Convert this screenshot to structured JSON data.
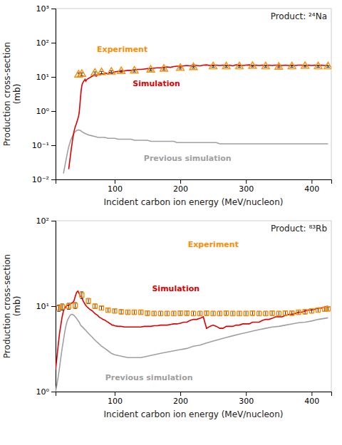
{
  "chart_data": [
    {
      "type": "line",
      "title": "Product: ²⁴Na",
      "x_label": "Incident carbon ion energy (MeV/nucleon)",
      "y_label": "Production cross-section\n(mb)",
      "log": "y",
      "xlim": [
        10,
        430
      ],
      "xticks": [
        100,
        200,
        300,
        400
      ],
      "ylim": [
        0.01,
        1000
      ],
      "yticks": [
        {
          "value": 0.01,
          "label": "10⁻²"
        },
        {
          "value": 0.1,
          "label": "10⁻¹"
        },
        {
          "value": 1,
          "label": "10⁰"
        },
        {
          "value": 10,
          "label": "10¹"
        },
        {
          "value": 100,
          "label": "10²"
        },
        {
          "value": 1000,
          "label": "10³"
        }
      ],
      "series": [
        {
          "name": "Previous simulation",
          "type": "line",
          "color": "#A0A0A0",
          "x": [
            22,
            25,
            28,
            30,
            33,
            36,
            39,
            42,
            45,
            48,
            50,
            55,
            60,
            65,
            70,
            75,
            80,
            85,
            90,
            95,
            100,
            105,
            110,
            115,
            120,
            125,
            130,
            135,
            140,
            145,
            150,
            155,
            160,
            165,
            170,
            175,
            180,
            185,
            190,
            195,
            200,
            205,
            210,
            215,
            220,
            225,
            230,
            235,
            240,
            245,
            250,
            255,
            260,
            265,
            270,
            275,
            280,
            285,
            290,
            295,
            300,
            305,
            310,
            315,
            320,
            325,
            330,
            335,
            340,
            345,
            350,
            355,
            360,
            365,
            370,
            375,
            380,
            385,
            390,
            395,
            400,
            405,
            410,
            415,
            420,
            425
          ],
          "values": [
            0.015,
            0.03,
            0.06,
            0.09,
            0.14,
            0.19,
            0.24,
            0.27,
            0.28,
            0.27,
            0.25,
            0.22,
            0.2,
            0.19,
            0.18,
            0.17,
            0.17,
            0.17,
            0.16,
            0.16,
            0.16,
            0.15,
            0.15,
            0.15,
            0.15,
            0.15,
            0.14,
            0.14,
            0.14,
            0.14,
            0.14,
            0.13,
            0.13,
            0.13,
            0.13,
            0.13,
            0.13,
            0.13,
            0.13,
            0.12,
            0.12,
            0.12,
            0.12,
            0.12,
            0.12,
            0.12,
            0.12,
            0.12,
            0.12,
            0.12,
            0.12,
            0.12,
            0.11,
            0.11,
            0.11,
            0.11,
            0.11,
            0.11,
            0.11,
            0.11,
            0.11,
            0.11,
            0.11,
            0.11,
            0.11,
            0.11,
            0.11,
            0.11,
            0.11,
            0.11,
            0.11,
            0.11,
            0.11,
            0.11,
            0.11,
            0.11,
            0.11,
            0.11,
            0.11,
            0.11,
            0.11,
            0.11,
            0.11,
            0.11,
            0.11,
            0.11
          ]
        },
        {
          "name": "Simulation",
          "type": "line",
          "color": "#DD0000",
          "x": [
            30,
            32,
            34,
            36,
            38,
            40,
            42,
            44,
            45,
            46,
            47,
            48,
            49,
            50,
            51,
            52,
            53,
            54,
            55,
            56,
            57,
            58,
            60,
            62,
            64,
            66,
            68,
            70,
            72,
            74,
            76,
            78,
            80,
            82,
            84,
            86,
            88,
            90,
            92,
            94,
            96,
            98,
            100,
            105,
            110,
            115,
            120,
            125,
            130,
            135,
            140,
            145,
            150,
            155,
            160,
            165,
            170,
            175,
            180,
            185,
            190,
            195,
            200,
            205,
            210,
            215,
            220,
            225,
            230,
            235,
            240,
            245,
            250,
            255,
            260,
            265,
            270,
            275,
            280,
            285,
            290,
            295,
            300,
            305,
            310,
            315,
            320,
            325,
            330,
            335,
            340,
            345,
            350,
            355,
            360,
            365,
            370,
            375,
            380,
            385,
            390,
            395,
            400,
            405,
            410,
            415,
            420,
            425
          ],
          "values": [
            0.02,
            0.04,
            0.08,
            0.15,
            0.25,
            0.35,
            0.45,
            0.6,
            0.7,
            0.9,
            1.5,
            2.5,
            4.0,
            5.5,
            6.5,
            7.0,
            7.5,
            8.0,
            8.5,
            7.5,
            8.0,
            8.5,
            9.0,
            9.5,
            10.0,
            10.5,
            11.0,
            11.0,
            10.5,
            11.5,
            12.0,
            11.5,
            12.5,
            12.0,
            12.0,
            13.0,
            12.5,
            12.0,
            13.5,
            13.0,
            12.5,
            13.5,
            14.0,
            14.5,
            14.5,
            15.0,
            15.5,
            15.5,
            16.0,
            16.5,
            16.5,
            17.0,
            17.5,
            17.5,
            18.0,
            18.5,
            18.5,
            19.0,
            19.5,
            19.0,
            20.0,
            20.5,
            20.5,
            21.0,
            21.5,
            21.0,
            22.0,
            21.5,
            21.0,
            22.0,
            22.5,
            21.5,
            22.0,
            22.0,
            21.5,
            22.0,
            21.5,
            22.0,
            21.0,
            22.5,
            22.0,
            21.5,
            22.0,
            22.5,
            21.5,
            22.0,
            21.5,
            22.0,
            21.5,
            22.0,
            21.5,
            22.0,
            22.0,
            21.5,
            22.0,
            21.5,
            22.0,
            21.5,
            22.0,
            22.0,
            21.5,
            22.0,
            21.5,
            22.0,
            21.5,
            22.0,
            21.5,
            22.0
          ]
        },
        {
          "name": "Experiment",
          "type": "scatter",
          "marker": "triangle",
          "color": "#FF8C00",
          "x": [
            45,
            50,
            70,
            80,
            95,
            110,
            130,
            155,
            175,
            200,
            220,
            250,
            270,
            290,
            310,
            330,
            350,
            370,
            390,
            410,
            425
          ],
          "values": [
            11.5,
            12,
            13,
            13.5,
            14,
            14.5,
            15,
            16,
            17,
            18,
            19,
            20,
            20,
            20,
            20.5,
            20,
            19.5,
            20,
            20.5,
            20,
            20
          ],
          "error_minus": [
            1.5,
            1.2,
            1.0,
            1.0,
            1.0,
            1.0,
            1.0,
            1.0,
            1.0,
            1.0,
            1.0,
            1.0,
            1.0,
            1.0,
            1.0,
            1.0,
            1.0,
            1.0,
            1.0,
            1.0,
            1.0
          ],
          "error_plus": [
            1.5,
            1.2,
            1.0,
            1.0,
            1.0,
            1.0,
            1.0,
            1.0,
            1.0,
            1.0,
            1.0,
            1.0,
            1.0,
            1.0,
            1.0,
            1.0,
            1.0,
            1.0,
            1.0,
            1.0,
            1.0
          ]
        }
      ]
    },
    {
      "type": "line",
      "title": "Product: ⁸³Rb",
      "x_label": "Incident carbon ion energy (MeV/nucleon)",
      "y_label": "Production cross-section\n(mb)",
      "log": "y",
      "xlim": [
        10,
        430
      ],
      "xticks": [
        100,
        200,
        300,
        400
      ],
      "ylim": [
        1.0,
        100
      ],
      "yticks": [
        {
          "value": 1,
          "label": "10⁰"
        },
        {
          "value": 10,
          "label": "10¹"
        },
        {
          "value": 100,
          "label": "10²"
        }
      ],
      "series": [
        {
          "name": "Previous simulation",
          "type": "line",
          "color": "#A0A0A0",
          "x": [
            10,
            12,
            14,
            16,
            18,
            20,
            22,
            24,
            26,
            28,
            30,
            32,
            34,
            36,
            38,
            40,
            42,
            44,
            46,
            48,
            50,
            55,
            60,
            65,
            70,
            75,
            80,
            85,
            90,
            95,
            100,
            110,
            120,
            130,
            140,
            150,
            160,
            170,
            180,
            190,
            200,
            210,
            220,
            230,
            240,
            250,
            260,
            270,
            280,
            290,
            300,
            310,
            320,
            330,
            340,
            350,
            360,
            370,
            380,
            390,
            400,
            410,
            420,
            425
          ],
          "values": [
            1.0,
            1.2,
            1.5,
            1.9,
            2.5,
            3.2,
            4.0,
            5.0,
            6.0,
            6.8,
            7.3,
            7.8,
            8.0,
            8.0,
            7.8,
            7.5,
            7.2,
            6.8,
            6.5,
            6.0,
            5.8,
            5.3,
            4.8,
            4.4,
            4.0,
            3.7,
            3.4,
            3.2,
            3.0,
            2.8,
            2.7,
            2.6,
            2.5,
            2.5,
            2.5,
            2.6,
            2.7,
            2.8,
            2.9,
            3.0,
            3.1,
            3.2,
            3.4,
            3.5,
            3.7,
            3.9,
            4.1,
            4.3,
            4.5,
            4.7,
            4.9,
            5.1,
            5.3,
            5.5,
            5.7,
            5.8,
            6.0,
            6.2,
            6.4,
            6.5,
            6.7,
            7.0,
            7.2,
            7.3
          ]
        },
        {
          "name": "Simulation",
          "type": "line",
          "color": "#DD0000",
          "x": [
            10,
            12,
            14,
            16,
            18,
            20,
            22,
            24,
            26,
            28,
            30,
            32,
            34,
            36,
            38,
            40,
            42,
            44,
            46,
            48,
            50,
            52,
            54,
            56,
            58,
            60,
            62,
            64,
            66,
            68,
            70,
            72,
            74,
            76,
            78,
            80,
            82,
            84,
            86,
            88,
            90,
            92,
            94,
            96,
            98,
            100,
            105,
            110,
            115,
            120,
            125,
            130,
            135,
            140,
            145,
            150,
            155,
            160,
            165,
            170,
            175,
            180,
            185,
            190,
            195,
            200,
            205,
            210,
            215,
            220,
            225,
            230,
            235,
            240,
            245,
            250,
            255,
            260,
            265,
            270,
            275,
            280,
            285,
            290,
            295,
            300,
            305,
            310,
            315,
            320,
            325,
            330,
            335,
            340,
            345,
            350,
            355,
            360,
            365,
            370,
            375,
            380,
            385,
            390,
            395,
            400,
            405,
            410,
            415,
            420,
            425
          ],
          "values": [
            1.8,
            2.5,
            3.5,
            4.8,
            6.0,
            7.5,
            8.8,
            9.5,
            10.0,
            10.2,
            10.3,
            10.5,
            10.8,
            11.0,
            11.5,
            13.0,
            14.5,
            15.0,
            14.0,
            13.0,
            12.5,
            11.5,
            10.8,
            10.2,
            9.8,
            9.5,
            9.2,
            9.0,
            8.8,
            8.5,
            8.2,
            8.0,
            7.8,
            7.5,
            7.3,
            7.2,
            7.0,
            6.9,
            6.8,
            6.6,
            6.5,
            6.3,
            6.2,
            6.0,
            6.0,
            5.9,
            5.8,
            5.8,
            5.7,
            5.7,
            5.7,
            5.7,
            5.7,
            5.7,
            5.8,
            5.8,
            5.8,
            5.9,
            5.9,
            6.0,
            6.0,
            6.0,
            6.1,
            6.2,
            6.2,
            6.3,
            6.5,
            6.5,
            6.8,
            7.0,
            7.0,
            7.2,
            7.5,
            5.5,
            5.8,
            6.0,
            5.8,
            5.5,
            5.5,
            5.8,
            5.8,
            5.8,
            6.0,
            6.0,
            6.2,
            6.2,
            6.2,
            6.5,
            6.5,
            6.5,
            6.8,
            7.0,
            7.0,
            7.2,
            7.5,
            7.5,
            7.5,
            7.8,
            8.0,
            8.0,
            8.2,
            8.5,
            8.5,
            8.8,
            9.0,
            9.0,
            9.2,
            9.5,
            9.5,
            9.8,
            10.0
          ]
        },
        {
          "name": "Experiment",
          "type": "scatter",
          "marker": "square",
          "color": "#FF8C00",
          "x": [
            15,
            20,
            30,
            40,
            50,
            60,
            70,
            80,
            90,
            100,
            110,
            120,
            130,
            140,
            150,
            160,
            170,
            180,
            190,
            200,
            210,
            220,
            230,
            240,
            250,
            260,
            270,
            280,
            290,
            300,
            310,
            320,
            330,
            340,
            350,
            360,
            370,
            380,
            390,
            400,
            410,
            420,
            425
          ],
          "values": [
            9.5,
            9.8,
            10.0,
            10.2,
            13.5,
            11.5,
            10.0,
            9.5,
            9.0,
            8.8,
            8.6,
            8.5,
            8.5,
            8.5,
            8.3,
            8.2,
            8.2,
            8.2,
            8.2,
            8.3,
            8.3,
            8.2,
            8.2,
            8.3,
            8.2,
            8.2,
            8.3,
            8.2,
            8.2,
            8.2,
            8.3,
            8.2,
            8.2,
            8.3,
            8.2,
            8.3,
            8.3,
            8.5,
            8.6,
            8.8,
            9.0,
            9.2,
            9.3
          ],
          "error_minus": [
            0.8,
            0.8,
            0.8,
            0.8,
            1.2,
            0.8,
            0.6,
            0.5,
            0.5,
            0.5,
            0.5,
            0.5,
            0.5,
            0.5,
            0.5,
            0.5,
            0.5,
            0.5,
            0.5,
            0.5,
            0.5,
            0.5,
            0.5,
            0.5,
            0.5,
            0.5,
            0.5,
            0.5,
            0.5,
            0.5,
            0.5,
            0.5,
            0.5,
            0.5,
            0.5,
            0.5,
            0.5,
            0.5,
            0.5,
            0.5,
            0.5,
            0.5,
            0.5
          ],
          "error_plus": [
            0.8,
            0.8,
            0.8,
            0.8,
            1.2,
            0.8,
            0.6,
            0.5,
            0.5,
            0.5,
            0.5,
            0.5,
            0.5,
            0.5,
            0.5,
            0.5,
            0.5,
            0.5,
            0.5,
            0.5,
            0.5,
            0.5,
            0.5,
            0.5,
            0.5,
            0.5,
            0.5,
            0.5,
            0.5,
            0.5,
            0.5,
            0.5,
            0.5,
            0.5,
            0.5,
            0.5,
            0.5,
            0.5,
            0.5,
            0.5,
            0.5,
            0.5,
            0.5
          ]
        }
      ]
    }
  ]
}
